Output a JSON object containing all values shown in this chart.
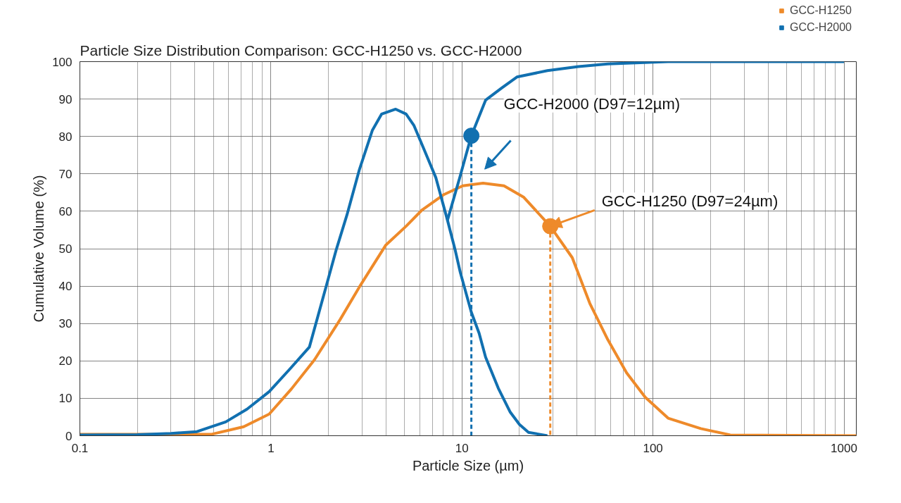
{
  "chart_data": {
    "type": "line",
    "title": "Particle Size Distribution Comparison: GCC-H1250 vs. GCC-H2000",
    "xlabel": "Particle Size (µm)",
    "ylabel": "Cumulative Volume (%)",
    "log": "x",
    "xlim": [
      0.1,
      1160
    ],
    "xticks": [
      0.1,
      1,
      10,
      100,
      1000
    ],
    "ylim": [
      0,
      100
    ],
    "yticks": [
      0,
      10,
      20,
      30,
      40,
      50,
      60,
      70,
      80,
      90,
      100
    ],
    "grid": true,
    "legend": "top right",
    "marker": "none",
    "line_style": "solid",
    "series": [
      {
        "name": "GCC-H1250",
        "color": "#ee8a2a",
        "x": [
          0.1,
          0.49,
          0.72,
          0.98,
          1.28,
          1.69,
          2.3,
          2.9,
          4.0,
          5.1,
          6.2,
          8.0,
          10.1,
          12.9,
          16.6,
          21,
          29,
          37.8,
          46.7,
          58,
          72.8,
          91,
          120,
          178,
          254,
          1160
        ],
        "values": [
          0.4,
          0.4,
          2.4,
          5.8,
          12.5,
          20.3,
          31,
          39.7,
          51,
          56,
          60.4,
          64.4,
          66.8,
          67.5,
          66.8,
          63.8,
          56,
          47.6,
          35.4,
          25.7,
          16.8,
          10.3,
          4.7,
          1.9,
          0.2,
          0
        ]
      },
      {
        "name": "GCC-H2000",
        "color": "#1170b0",
        "x": [
          0.1,
          0.2,
          0.3,
          0.41,
          0.58,
          0.75,
          0.98,
          1.25,
          1.59,
          1.96,
          2.2,
          2.5,
          2.9,
          3.4,
          3.8,
          4.5,
          5.1,
          5.6,
          6.4,
          7.3,
          8.4,
          9.2,
          9.8,
          11.2,
          12.3,
          13.3,
          15.5,
          17.9,
          20,
          22.3,
          28
        ],
        "values": [
          0.2,
          0.3,
          0.6,
          1.1,
          3.7,
          7.1,
          11.8,
          17.7,
          23.7,
          40.5,
          49.8,
          59,
          71,
          81.7,
          86,
          87.3,
          86,
          83,
          76,
          69,
          57.6,
          49.8,
          43.7,
          33,
          27.4,
          21,
          12.7,
          6.3,
          3,
          0.9,
          0
        ]
      },
      {
        "color": "#1170b0",
        "x": [
          8.4,
          9.7,
          11.2,
          13.3,
          16.2,
          19.4,
          28,
          40.7,
          58,
          120,
          1000
        ],
        "values": [
          57.6,
          68.7,
          80.2,
          89.7,
          93,
          95.9,
          97.6,
          98.7,
          99.4,
          100,
          100
        ]
      },
      {
        "type": "scatter",
        "marker": "circle",
        "color": "#1170b0",
        "x": [
          11.2
        ],
        "values": [
          80.2
        ]
      },
      {
        "type": "scatter",
        "marker": "circle",
        "color": "#ee8a2a",
        "x": [
          29
        ],
        "values": [
          56
        ]
      },
      {
        "color": "#1170b0",
        "line_style": "dashed",
        "x": [
          11.2,
          11.2
        ],
        "values": [
          80.2,
          0
        ]
      },
      {
        "color": "#ee8a2a",
        "line_style": "dashed",
        "x": [
          29,
          29
        ],
        "values": [
          56,
          0
        ]
      }
    ],
    "annotations": [
      {
        "text": "GCC-H2000 (D97=12µm)",
        "x": 11.2,
        "y": 80.2
      },
      {
        "text": "GCC-H1250 (D97=24µm)",
        "x": 29,
        "y": 56
      }
    ]
  }
}
